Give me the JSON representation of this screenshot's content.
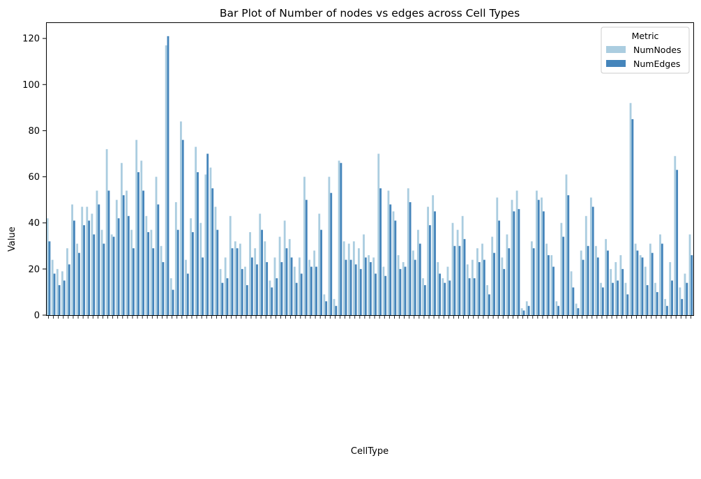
{
  "chart_data": {
    "type": "bar",
    "title": "Bar Plot of Number of nodes vs edges across Cell Types",
    "xlabel": "CellType",
    "ylabel": "Value",
    "ylim": [
      0,
      127
    ],
    "yticks": [
      0,
      20,
      40,
      60,
      80,
      100,
      120
    ],
    "grid": false,
    "x_tick_labels_visible": false,
    "legend": {
      "title": "Metric",
      "position": "top-right"
    },
    "series": [
      {
        "name": "NumNodes",
        "color": "#abcde0",
        "values": [
          42,
          24,
          20,
          19,
          29,
          48,
          31,
          47,
          47,
          44,
          54,
          37,
          72,
          35,
          50,
          66,
          54,
          37,
          76,
          67,
          43,
          37,
          60,
          30,
          117,
          16,
          49,
          84,
          24,
          42,
          73,
          40,
          61,
          64,
          47,
          20,
          25,
          43,
          32,
          31,
          21,
          36,
          29,
          44,
          32,
          15,
          25,
          34,
          41,
          33,
          21,
          25,
          60,
          24,
          28,
          44,
          9,
          60,
          7,
          67,
          32,
          31,
          32,
          29,
          35,
          26,
          25,
          70,
          21,
          54,
          45,
          26,
          23,
          55,
          28,
          37,
          16,
          47,
          52,
          23,
          16,
          21,
          40,
          37,
          43,
          22,
          24,
          29,
          31,
          13,
          34,
          51,
          25,
          35,
          50,
          54,
          3,
          6,
          32,
          54,
          51,
          31,
          26,
          6,
          40,
          61,
          19,
          5,
          28,
          43,
          51,
          30,
          14,
          33,
          20,
          23,
          26,
          14,
          92,
          31,
          26,
          21,
          31,
          14,
          35,
          7,
          23,
          69,
          12,
          18,
          35
        ]
      },
      {
        "name": "NumEdges",
        "color": "#4585bb",
        "values": [
          32,
          18,
          13,
          15,
          22,
          41,
          27,
          39,
          41,
          35,
          48,
          31,
          54,
          34,
          42,
          52,
          43,
          29,
          62,
          54,
          36,
          29,
          48,
          23,
          121,
          11,
          37,
          76,
          18,
          36,
          62,
          25,
          70,
          55,
          37,
          14,
          16,
          29,
          29,
          20,
          13,
          25,
          22,
          37,
          23,
          12,
          16,
          23,
          29,
          25,
          14,
          18,
          50,
          21,
          21,
          37,
          6,
          53,
          4,
          66,
          24,
          24,
          22,
          20,
          25,
          23,
          18,
          55,
          17,
          48,
          41,
          20,
          21,
          49,
          24,
          31,
          13,
          39,
          45,
          18,
          14,
          15,
          30,
          30,
          33,
          16,
          16,
          23,
          24,
          9,
          27,
          41,
          20,
          29,
          45,
          46,
          2,
          4,
          29,
          50,
          45,
          26,
          21,
          4,
          34,
          52,
          12,
          3,
          24,
          30,
          47,
          25,
          12,
          28,
          14,
          15,
          20,
          9,
          85,
          28,
          25,
          13,
          27,
          10,
          31,
          4,
          15,
          63,
          7,
          14,
          26
        ]
      }
    ]
  }
}
